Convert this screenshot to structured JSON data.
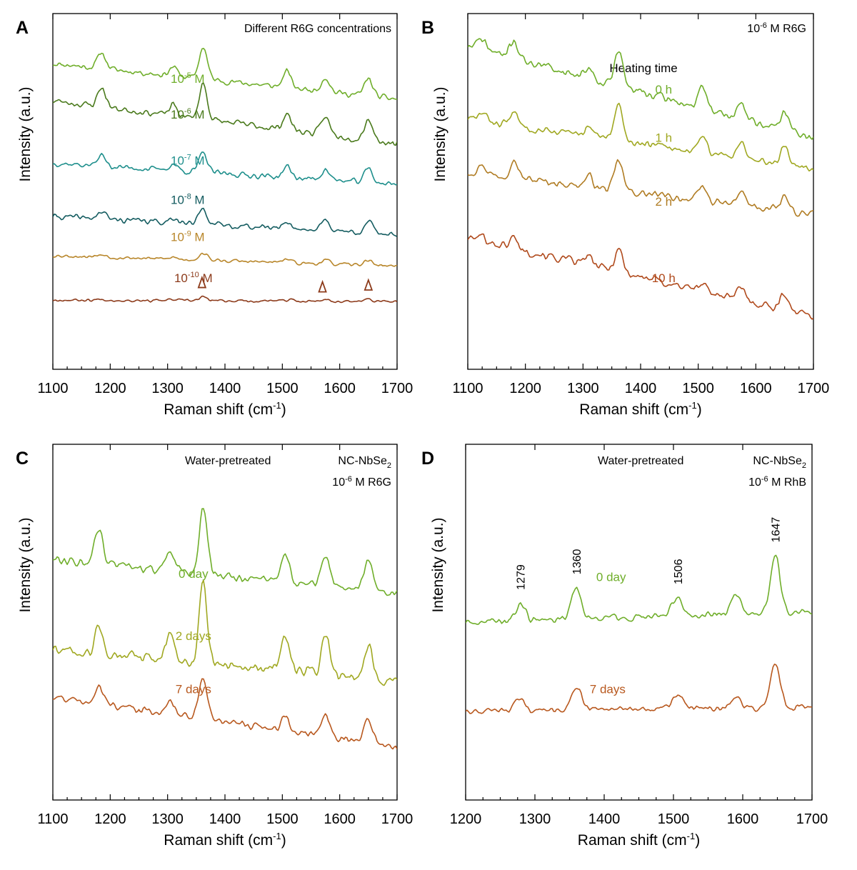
{
  "chart_data": [
    {
      "panel": "A",
      "type": "line",
      "title": "Different R6G concentrations",
      "xlabel": "Raman shift (cm",
      "xlabel_sup": "-1",
      "xlabel_end": ")",
      "ylabel": "Intensity (a.u.)",
      "xlim": [
        1100,
        1700
      ],
      "x_ticks": [
        1100,
        1200,
        1300,
        1400,
        1500,
        1600,
        1700
      ],
      "ylim": [
        0,
        10
      ],
      "y_ticks_shown": false,
      "peaks_cm-1": [
        1185,
        1310,
        1362,
        1508,
        1575,
        1650
      ],
      "series": [
        {
          "name": "10-5 M",
          "label_base": "10",
          "label_exp": "-5",
          "label_unit": " M",
          "color": "#6fae2a",
          "baseline": 8.6,
          "slope": -1.0,
          "peak_heights": [
            0.45,
            0.25,
            0.9,
            0.45,
            0.4,
            0.5
          ],
          "noise": 0.1,
          "seed": 11
        },
        {
          "name": "10-6 M",
          "label_base": "10",
          "label_exp": "-6",
          "label_unit": " M",
          "color": "#4a7a1c",
          "baseline": 7.55,
          "slope": -1.2,
          "peak_heights": [
            0.55,
            0.3,
            1.0,
            0.45,
            0.5,
            0.6
          ],
          "noise": 0.12,
          "seed": 23
        },
        {
          "name": "10-7 M",
          "label_base": "10",
          "label_exp": "-7",
          "label_unit": " M",
          "color": "#1e8f8c",
          "baseline": 5.8,
          "slope": -0.6,
          "peak_heights": [
            0.3,
            0.18,
            0.55,
            0.3,
            0.3,
            0.4
          ],
          "noise": 0.1,
          "seed": 37
        },
        {
          "name": "10-8 M",
          "label_base": "10",
          "label_exp": "-8",
          "label_unit": " M",
          "color": "#145c60",
          "baseline": 4.3,
          "slope": -0.5,
          "peak_heights": [
            0.2,
            0.15,
            0.45,
            0.2,
            0.3,
            0.3
          ],
          "noise": 0.1,
          "seed": 41
        },
        {
          "name": "10-9 M",
          "label_base": "10",
          "label_exp": "-9",
          "label_unit": " M",
          "color": "#b8862a",
          "baseline": 3.2,
          "slope": -0.3,
          "peak_heights": [
            0.08,
            0.05,
            0.2,
            0.1,
            0.1,
            0.15
          ],
          "noise": 0.06,
          "seed": 53
        },
        {
          "name": "10-10 M",
          "label_base": "10",
          "label_exp": "-10",
          "label_unit": " M",
          "color": "#8c3a1a",
          "baseline": 1.95,
          "slope": -0.05,
          "peak_heights": [
            0.03,
            0.02,
            0.1,
            0.03,
            0.06,
            0.07
          ],
          "noise": 0.05,
          "seed": 67
        }
      ],
      "label_x": [
        1335,
        1335,
        1335,
        1335,
        1335,
        1345
      ],
      "label_y": [
        8.05,
        7.05,
        5.75,
        4.65,
        3.6,
        2.45
      ],
      "markers": {
        "x": [
          1360,
          1570,
          1650
        ],
        "series_index": 5
      }
    },
    {
      "panel": "B",
      "type": "line",
      "title_base": "10",
      "title_exp": "-6",
      "title_rest": " M R6G",
      "legend_title": "Heating time",
      "xlabel": "Raman shift (cm",
      "xlabel_sup": "-1",
      "xlabel_end": ")",
      "ylabel": "Intensity (a.u.)",
      "xlim": [
        1100,
        1700
      ],
      "x_ticks": [
        1100,
        1200,
        1300,
        1400,
        1500,
        1600,
        1700
      ],
      "ylim": [
        0,
        10
      ],
      "y_ticks_shown": false,
      "peaks_cm-1": [
        1125,
        1180,
        1310,
        1362,
        1508,
        1575,
        1650
      ],
      "series": [
        {
          "name": "0 h",
          "color": "#6fae2a",
          "baseline": 9.1,
          "slope": -2.6,
          "peak_heights": [
            0.3,
            0.5,
            0.3,
            1.0,
            0.55,
            0.4,
            0.55
          ],
          "noise": 0.15,
          "seed": 71
        },
        {
          "name": "1 h",
          "color": "#a0a821",
          "baseline": 7.05,
          "slope": -1.4,
          "peak_heights": [
            0.2,
            0.35,
            0.25,
            1.0,
            0.4,
            0.5,
            0.55
          ],
          "noise": 0.13,
          "seed": 83
        },
        {
          "name": "2 h",
          "color": "#b07c23",
          "baseline": 5.55,
          "slope": -1.2,
          "peak_heights": [
            0.25,
            0.5,
            0.3,
            0.85,
            0.4,
            0.4,
            0.4
          ],
          "noise": 0.13,
          "seed": 97
        },
        {
          "name": "10 h",
          "color": "#b04a1c",
          "baseline": 3.7,
          "slope": -2.2,
          "peak_heights": [
            0.15,
            0.3,
            0.25,
            0.65,
            0.2,
            0.3,
            0.45
          ],
          "noise": 0.15,
          "seed": 101
        }
      ],
      "label_x": [
        1440,
        1440,
        1440,
        1440
      ],
      "label_y": [
        7.75,
        6.4,
        4.6,
        2.45
      ]
    },
    {
      "panel": "C",
      "type": "line",
      "title_line1_left": "Water-pretreated",
      "title_line1_right_base": "NC-NbSe",
      "title_line1_right_sub": "2",
      "title_line2_base": "10",
      "title_line2_exp": "-6",
      "title_line2_rest": " M R6G",
      "xlabel": "Raman shift (cm",
      "xlabel_sup": "-1",
      "xlabel_end": ")",
      "ylabel": "Intensity (a.u.)",
      "xlim": [
        1100,
        1700
      ],
      "x_ticks": [
        1100,
        1200,
        1300,
        1400,
        1500,
        1600,
        1700
      ],
      "ylim": [
        0,
        10
      ],
      "y_ticks_shown": false,
      "peaks_cm-1": [
        1180,
        1305,
        1362,
        1505,
        1575,
        1650
      ],
      "series": [
        {
          "name": "0 day",
          "color": "#6fae2a",
          "baseline": 6.8,
          "slope": -1.0,
          "peak_heights": [
            0.9,
            0.5,
            1.9,
            0.9,
            0.9,
            0.9
          ],
          "noise": 0.15,
          "seed": 113
        },
        {
          "name": "2 days",
          "color": "#a0a821",
          "baseline": 4.25,
          "slope": -0.9,
          "peak_heights": [
            0.7,
            0.8,
            2.2,
            1.0,
            1.1,
            0.9
          ],
          "noise": 0.2,
          "seed": 127
        },
        {
          "name": "7 days",
          "color": "#b8581e",
          "baseline": 2.9,
          "slope": -1.4,
          "peak_heights": [
            0.5,
            0.3,
            1.2,
            0.4,
            0.6,
            0.7
          ],
          "noise": 0.12,
          "seed": 131
        }
      ],
      "label_x": [
        1345,
        1345,
        1345
      ],
      "label_y": [
        6.25,
        4.5,
        3.0
      ]
    },
    {
      "panel": "D",
      "type": "line",
      "title_line1_left": "Water-pretreated",
      "title_line1_right_base": "NC-NbSe",
      "title_line1_right_sub": "2",
      "title_line2_base": "10",
      "title_line2_exp": "-6",
      "title_line2_rest": " M RhB",
      "xlabel": "Raman shift (cm",
      "xlabel_sup": "-1",
      "xlabel_end": ")",
      "ylabel": "Intensity (a.u.)",
      "xlim": [
        1200,
        1700
      ],
      "x_ticks": [
        1200,
        1300,
        1400,
        1500,
        1600,
        1700
      ],
      "ylim": [
        0,
        10
      ],
      "y_ticks_shown": false,
      "peaks_cm-1": [
        1279,
        1360,
        1506,
        1590,
        1647
      ],
      "peak_labels": [
        "1279",
        "1360",
        "1506",
        "1647"
      ],
      "peak_label_x": [
        1279,
        1360,
        1506,
        1647
      ],
      "series": [
        {
          "name": "0 day",
          "color": "#6fae2a",
          "baseline": 5.0,
          "slope": 0.3,
          "peak_heights": [
            0.45,
            0.9,
            0.55,
            0.5,
            1.55
          ],
          "noise": 0.12,
          "seed": 149
        },
        {
          "name": "7 days",
          "color": "#b8581e",
          "baseline": 2.5,
          "slope": 0.1,
          "peak_heights": [
            0.3,
            0.65,
            0.4,
            0.3,
            1.25
          ],
          "noise": 0.1,
          "seed": 151
        }
      ],
      "label_x": [
        1410,
        1405
      ],
      "label_y": [
        6.15,
        3.0
      ]
    }
  ]
}
